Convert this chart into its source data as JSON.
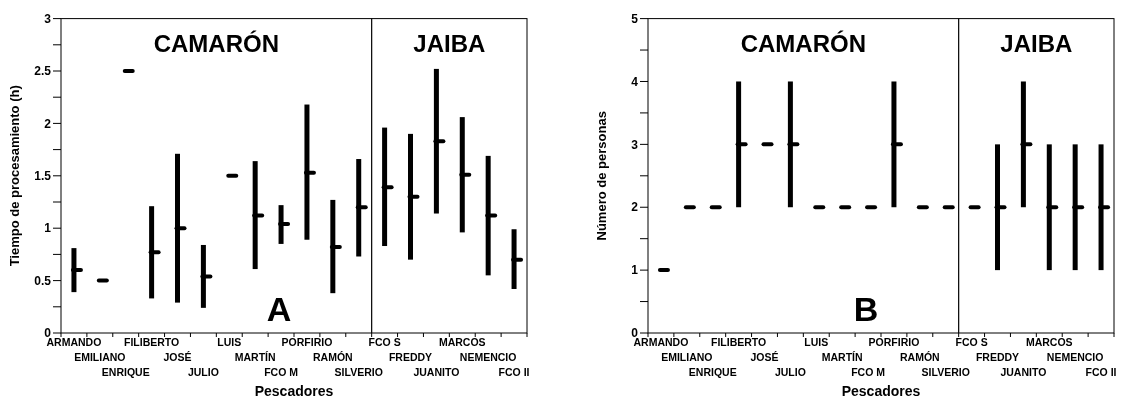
{
  "chart_data": [
    {
      "type": "bar",
      "xlabel": "Pescadores",
      "ylabel": "Tiempo de procesamiento (h)",
      "annotations": [
        "CAMARÓN",
        "JAIBA",
        "A"
      ],
      "categories": [
        "ARMANDO",
        "EMILIANO",
        "ENRIQUE",
        "FILIBERTO",
        "JOSÉ",
        "JULIO",
        "LUIS",
        "MARTÍN",
        "FCO M",
        "PORFIRIO",
        "RAMÓN",
        "SILVERIO",
        "FCO S",
        "FREDDY",
        "JUANITO",
        "MARCOS",
        "NEMENCIO",
        "FCO II"
      ],
      "series": [
        {
          "color": "#000000",
          "base": [
            0.39,
            null,
            null,
            0.33,
            0.29,
            0.24,
            null,
            0.61,
            0.85,
            0.89,
            0.38,
            0.73,
            0.83,
            0.7,
            1.14,
            0.96,
            0.55,
            0.42
          ],
          "values": [
            0.42,
            null,
            null,
            0.88,
            1.42,
            0.6,
            null,
            1.03,
            0.37,
            1.29,
            0.89,
            0.93,
            1.13,
            1.2,
            1.38,
            1.1,
            1.14,
            0.57
          ]
        },
        {
          "type": "scatter",
          "color": "#000000",
          "x": [
            "ARMANDO",
            "EMILIANO",
            "ENRIQUE",
            "FILIBERTO",
            "JOSÉ",
            "JULIO",
            "LUIS",
            "MARTÍN",
            "FCO M",
            "PORFIRIO",
            "RAMÓN",
            "SILVERIO",
            "FCO S",
            "FREDDY",
            "JUANITO",
            "MARCOS",
            "NEMENCIO",
            "FCO II"
          ],
          "values": [
            0.6,
            0.5,
            2.5,
            0.77,
            1.0,
            0.54,
            1.5,
            1.12,
            1.04,
            1.53,
            0.82,
            1.2,
            1.39,
            1.3,
            1.83,
            1.51,
            1.12,
            0.7
          ]
        }
      ],
      "ylim": [
        0,
        3
      ],
      "yticks": [
        0,
        {
          "value": 0.25,
          "label": null
        },
        0.5,
        {
          "value": 0.75,
          "label": null
        },
        1,
        {
          "value": 1.25,
          "label": null
        },
        1.5,
        {
          "value": 1.75,
          "label": null
        },
        2,
        {
          "value": 2.25,
          "label": null
        },
        2.5,
        {
          "value": 2.75,
          "label": null
        },
        3
      ]
    },
    {
      "type": "bar",
      "xlabel": "Pescadores",
      "ylabel": "Número de personas",
      "annotations": [
        "CAMARÓN",
        "JAIBA",
        "B"
      ],
      "categories": [
        "ARMANDO",
        "EMILIANO",
        "ENRIQUE",
        "FILIBERTO",
        "JOSÉ",
        "JULIO",
        "LUIS",
        "MARTÍN",
        "FCO M",
        "PORFIRIO",
        "RAMÓN",
        "SILVERIO",
        "FCO S",
        "FREDDY",
        "JUANITO",
        "MARCOS",
        "NEMENCIO",
        "FCO II"
      ],
      "series": [
        {
          "color": "#000000",
          "base": [
            null,
            null,
            null,
            2,
            null,
            2,
            null,
            null,
            null,
            2,
            null,
            null,
            null,
            1,
            2,
            1,
            1,
            1
          ],
          "values": [
            null,
            null,
            null,
            2,
            null,
            2,
            null,
            null,
            null,
            2,
            null,
            null,
            null,
            2,
            2,
            2,
            2,
            2
          ]
        },
        {
          "type": "scatter",
          "color": "#000000",
          "x": [
            "ARMANDO",
            "EMILIANO",
            "ENRIQUE",
            "FILIBERTO",
            "JOSÉ",
            "JULIO",
            "LUIS",
            "MARTÍN",
            "FCO M",
            "PORFIRIO",
            "RAMÓN",
            "SILVERIO",
            "FCO S",
            "FREDDY",
            "JUANITO",
            "MARCOS",
            "NEMENCIO",
            "FCO II"
          ],
          "values": [
            1,
            2,
            2,
            3,
            3,
            3,
            2,
            2,
            2,
            3,
            2,
            2,
            2,
            2,
            3,
            2,
            2,
            2
          ]
        }
      ],
      "ylim": [
        0,
        5
      ],
      "yticks": [
        0,
        {
          "value": 0.5,
          "label": null
        },
        1,
        {
          "value": 1.5,
          "label": null
        },
        2,
        {
          "value": 2.5,
          "label": null
        },
        3,
        {
          "value": 3.5,
          "label": null
        },
        4,
        {
          "value": 4.5,
          "label": null
        },
        5
      ]
    }
  ]
}
